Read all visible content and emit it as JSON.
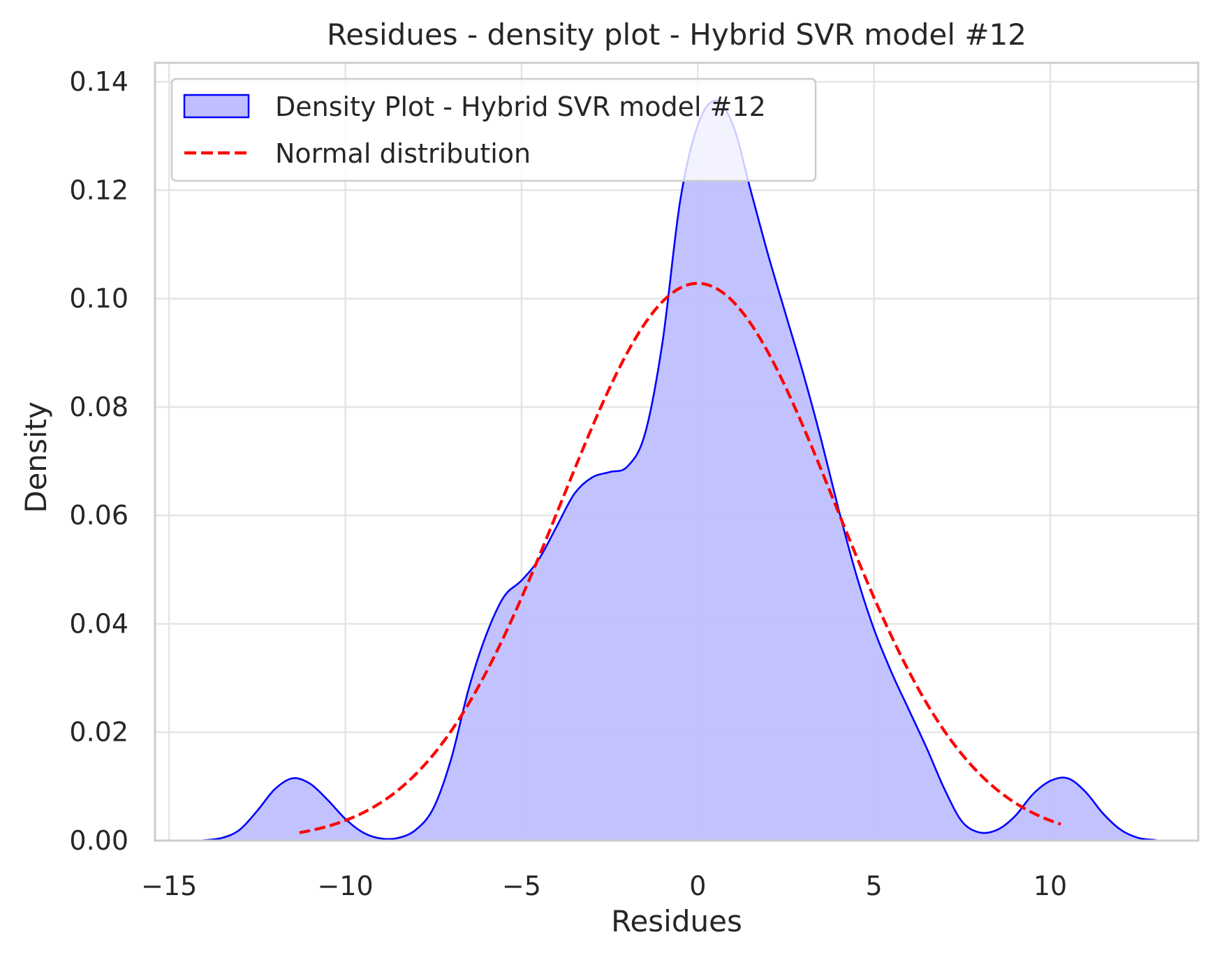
{
  "chart_data": {
    "type": "area",
    "title": "Residues - density plot - Hybrid SVR model #12",
    "xlabel": "Residues",
    "ylabel": "Density",
    "xlim": [
      -15.4,
      14.2
    ],
    "ylim": [
      0,
      0.1435
    ],
    "x_ticks": [
      -15,
      -10,
      -5,
      0,
      5,
      10
    ],
    "x_tick_labels": [
      "−15",
      "−10",
      "−5",
      "0",
      "5",
      "10"
    ],
    "y_ticks": [
      0.0,
      0.02,
      0.04,
      0.06,
      0.08,
      0.1,
      0.12,
      0.14
    ],
    "y_tick_labels": [
      "0.00",
      "0.02",
      "0.04",
      "0.06",
      "0.08",
      "0.10",
      "0.12",
      "0.14"
    ],
    "grid": true,
    "legend_position": "upper-left",
    "colors": {
      "kde_line": "#0000ff",
      "kde_fill": "#bfbfff",
      "normal_line": "#ff0000",
      "grid": "#e5e5e5",
      "spine": "#cccccc",
      "text": "#262626"
    },
    "series": [
      {
        "name": "Density Plot - Hybrid SVR model #12",
        "style": "filled-area",
        "points": [
          [
            -14.1,
            0.0
          ],
          [
            -13.5,
            0.0005
          ],
          [
            -13.0,
            0.002
          ],
          [
            -12.5,
            0.0055
          ],
          [
            -12.0,
            0.0095
          ],
          [
            -11.5,
            0.0115
          ],
          [
            -11.0,
            0.0105
          ],
          [
            -10.5,
            0.0075
          ],
          [
            -10.0,
            0.004
          ],
          [
            -9.5,
            0.0015
          ],
          [
            -9.0,
            0.0004
          ],
          [
            -8.5,
            0.0005
          ],
          [
            -8.0,
            0.002
          ],
          [
            -7.5,
            0.006
          ],
          [
            -7.0,
            0.015
          ],
          [
            -6.5,
            0.028
          ],
          [
            -6.0,
            0.038
          ],
          [
            -5.5,
            0.045
          ],
          [
            -5.0,
            0.048
          ],
          [
            -4.5,
            0.052
          ],
          [
            -4.0,
            0.058
          ],
          [
            -3.5,
            0.064
          ],
          [
            -3.0,
            0.067
          ],
          [
            -2.5,
            0.068
          ],
          [
            -2.0,
            0.069
          ],
          [
            -1.5,
            0.075
          ],
          [
            -1.0,
            0.092
          ],
          [
            -0.5,
            0.118
          ],
          [
            0.0,
            0.132
          ],
          [
            0.5,
            0.1365
          ],
          [
            1.0,
            0.132
          ],
          [
            1.5,
            0.12
          ],
          [
            2.0,
            0.108
          ],
          [
            2.5,
            0.097
          ],
          [
            3.0,
            0.086
          ],
          [
            3.5,
            0.074
          ],
          [
            4.0,
            0.061
          ],
          [
            4.5,
            0.049
          ],
          [
            5.0,
            0.039
          ],
          [
            5.5,
            0.031
          ],
          [
            6.0,
            0.024
          ],
          [
            6.5,
            0.017
          ],
          [
            7.0,
            0.0095
          ],
          [
            7.5,
            0.0035
          ],
          [
            8.0,
            0.0015
          ],
          [
            8.5,
            0.002
          ],
          [
            9.0,
            0.0045
          ],
          [
            9.5,
            0.0085
          ],
          [
            10.0,
            0.011
          ],
          [
            10.5,
            0.0115
          ],
          [
            11.0,
            0.009
          ],
          [
            11.5,
            0.005
          ],
          [
            12.0,
            0.002
          ],
          [
            12.5,
            0.0005
          ],
          [
            13.0,
            0.0001
          ]
        ]
      },
      {
        "name": "Normal distribution",
        "style": "dashed-line",
        "mean": 0.0,
        "std": 3.88,
        "x_range": [
          -11.3,
          10.3
        ]
      }
    ]
  }
}
